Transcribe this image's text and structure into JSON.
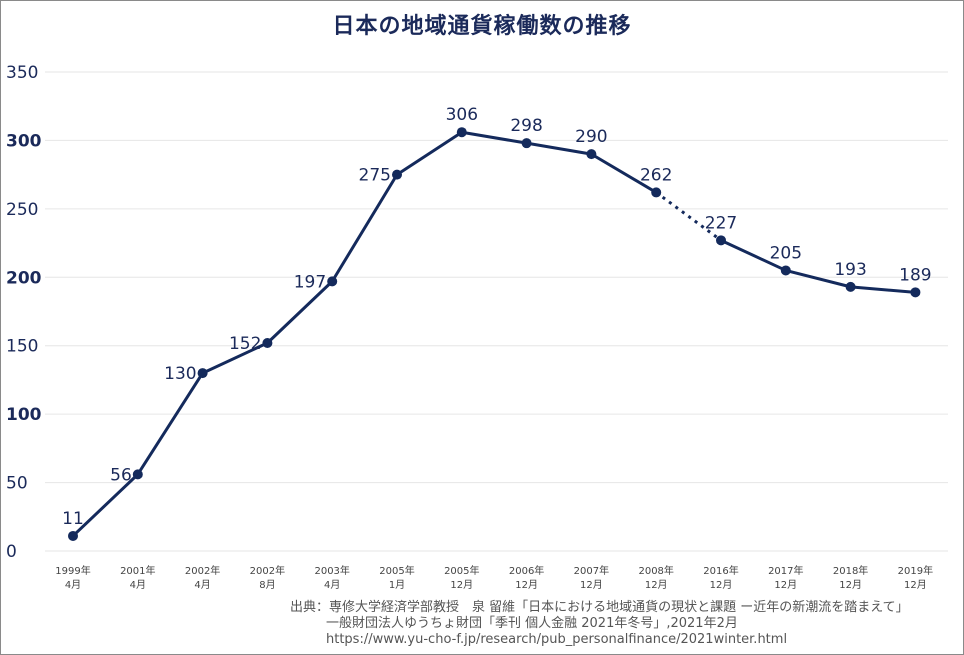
{
  "chart_data": {
    "type": "line",
    "title": "日本の地域通貨稼働数の推移",
    "categories": [
      [
        "1999年",
        "4月"
      ],
      [
        "2001年",
        "4月"
      ],
      [
        "2002年",
        "4月"
      ],
      [
        "2002年",
        "8月"
      ],
      [
        "2003年",
        "4月"
      ],
      [
        "2005年",
        "1月"
      ],
      [
        "2005年",
        "12月"
      ],
      [
        "2006年",
        "12月"
      ],
      [
        "2007年",
        "12月"
      ],
      [
        "2008年",
        "12月"
      ],
      [
        "2016年",
        "12月"
      ],
      [
        "2017年",
        "12月"
      ],
      [
        "2018年",
        "12月"
      ],
      [
        "2019年",
        "12月"
      ]
    ],
    "values": [
      11,
      56,
      130,
      152,
      197,
      275,
      306,
      298,
      290,
      262,
      227,
      205,
      193,
      189
    ],
    "dashed_segment": [
      9,
      10
    ],
    "yticks": [
      0,
      50,
      100,
      150,
      200,
      250,
      300,
      350
    ],
    "bold_yticks": [
      100,
      200,
      300
    ],
    "ylim": [
      0,
      350
    ],
    "grid": true,
    "legend": "none",
    "colors": {
      "line": "#142a5c",
      "grid": "#e6e6e6",
      "label": "#1b2a5a",
      "axis_text": "#444444"
    }
  },
  "source": {
    "line1": "出典：専修大学経済学部教授　泉 留維「日本における地域通貨の現状と課題 ー近年の新潮流を踏まえて」",
    "line2": "一般財団法人ゆうちょ財団「季刊 個人金融 2021年冬号」,2021年2月",
    "line3": "https://www.yu-cho-f.jp/research/pub_personalfinance/2021winter.html"
  }
}
